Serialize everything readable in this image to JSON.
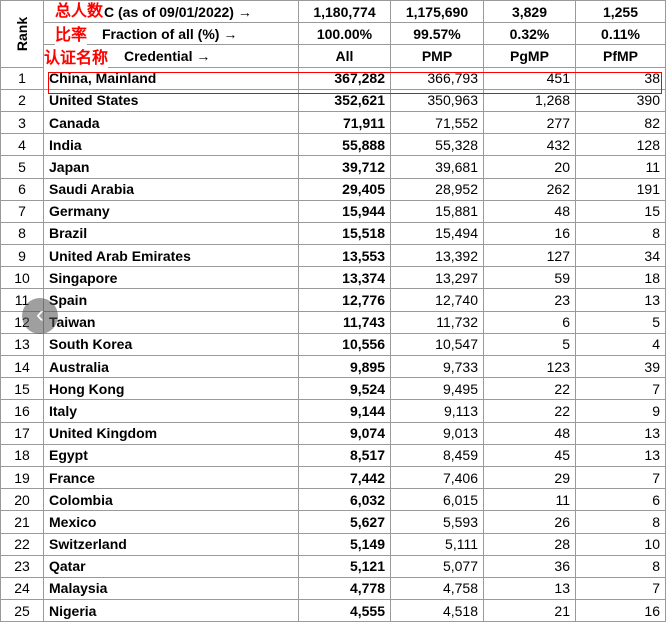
{
  "header": {
    "rank_label": "Rank",
    "total_label": "(as of 09/01/2022) →",
    "total_prefix_fragment": "C",
    "fraction_label": "Fraction of all (%) →",
    "credential_label": "Credential →",
    "totals": [
      "1,180,774",
      "1,175,690",
      "3,829",
      "1,255"
    ],
    "fractions": [
      "100.00%",
      "99.57%",
      "0.32%",
      "0.11%"
    ],
    "credentials": [
      "All",
      "PMP",
      "PgMP",
      "PfMP"
    ]
  },
  "annotations": {
    "total_people": "总人数",
    "ratio": "比率",
    "credential_name": "认证名称",
    "color": "#ff0000"
  },
  "nav": {
    "prev_icon": "‹"
  },
  "rows": [
    {
      "rank": "1",
      "country": "China, Mainland",
      "all": "367,282",
      "pmp": "366,793",
      "pgmp": "451",
      "pfmp": "38"
    },
    {
      "rank": "2",
      "country": "United States",
      "all": "352,621",
      "pmp": "350,963",
      "pgmp": "1,268",
      "pfmp": "390"
    },
    {
      "rank": "3",
      "country": "Canada",
      "all": "71,911",
      "pmp": "71,552",
      "pgmp": "277",
      "pfmp": "82"
    },
    {
      "rank": "4",
      "country": "India",
      "all": "55,888",
      "pmp": "55,328",
      "pgmp": "432",
      "pfmp": "128"
    },
    {
      "rank": "5",
      "country": "Japan",
      "all": "39,712",
      "pmp": "39,681",
      "pgmp": "20",
      "pfmp": "11"
    },
    {
      "rank": "6",
      "country": "Saudi Arabia",
      "all": "29,405",
      "pmp": "28,952",
      "pgmp": "262",
      "pfmp": "191"
    },
    {
      "rank": "7",
      "country": "Germany",
      "all": "15,944",
      "pmp": "15,881",
      "pgmp": "48",
      "pfmp": "15"
    },
    {
      "rank": "8",
      "country": "Brazil",
      "all": "15,518",
      "pmp": "15,494",
      "pgmp": "16",
      "pfmp": "8"
    },
    {
      "rank": "9",
      "country": "United Arab Emirates",
      "all": "13,553",
      "pmp": "13,392",
      "pgmp": "127",
      "pfmp": "34"
    },
    {
      "rank": "10",
      "country": "Singapore",
      "all": "13,374",
      "pmp": "13,297",
      "pgmp": "59",
      "pfmp": "18"
    },
    {
      "rank": "11",
      "country": "Spain",
      "all": "12,776",
      "pmp": "12,740",
      "pgmp": "23",
      "pfmp": "13"
    },
    {
      "rank": "12",
      "country": "Taiwan",
      "all": "11,743",
      "pmp": "11,732",
      "pgmp": "6",
      "pfmp": "5"
    },
    {
      "rank": "13",
      "country": "South Korea",
      "all": "10,556",
      "pmp": "10,547",
      "pgmp": "5",
      "pfmp": "4"
    },
    {
      "rank": "14",
      "country": "Australia",
      "all": "9,895",
      "pmp": "9,733",
      "pgmp": "123",
      "pfmp": "39"
    },
    {
      "rank": "15",
      "country": "Hong Kong",
      "all": "9,524",
      "pmp": "9,495",
      "pgmp": "22",
      "pfmp": "7"
    },
    {
      "rank": "16",
      "country": "Italy",
      "all": "9,144",
      "pmp": "9,113",
      "pgmp": "22",
      "pfmp": "9"
    },
    {
      "rank": "17",
      "country": "United Kingdom",
      "all": "9,074",
      "pmp": "9,013",
      "pgmp": "48",
      "pfmp": "13"
    },
    {
      "rank": "18",
      "country": "Egypt",
      "all": "8,517",
      "pmp": "8,459",
      "pgmp": "45",
      "pfmp": "13"
    },
    {
      "rank": "19",
      "country": "France",
      "all": "7,442",
      "pmp": "7,406",
      "pgmp": "29",
      "pfmp": "7"
    },
    {
      "rank": "20",
      "country": "Colombia",
      "all": "6,032",
      "pmp": "6,015",
      "pgmp": "11",
      "pfmp": "6"
    },
    {
      "rank": "21",
      "country": "Mexico",
      "all": "5,627",
      "pmp": "5,593",
      "pgmp": "26",
      "pfmp": "8"
    },
    {
      "rank": "22",
      "country": "Switzerland",
      "all": "5,149",
      "pmp": "5,111",
      "pgmp": "28",
      "pfmp": "10"
    },
    {
      "rank": "23",
      "country": "Qatar",
      "all": "5,121",
      "pmp": "5,077",
      "pgmp": "36",
      "pfmp": "8"
    },
    {
      "rank": "24",
      "country": "Malaysia",
      "all": "4,778",
      "pmp": "4,758",
      "pgmp": "13",
      "pfmp": "7"
    },
    {
      "rank": "25",
      "country": "Nigeria",
      "all": "4,555",
      "pmp": "4,518",
      "pgmp": "21",
      "pfmp": "16"
    }
  ]
}
